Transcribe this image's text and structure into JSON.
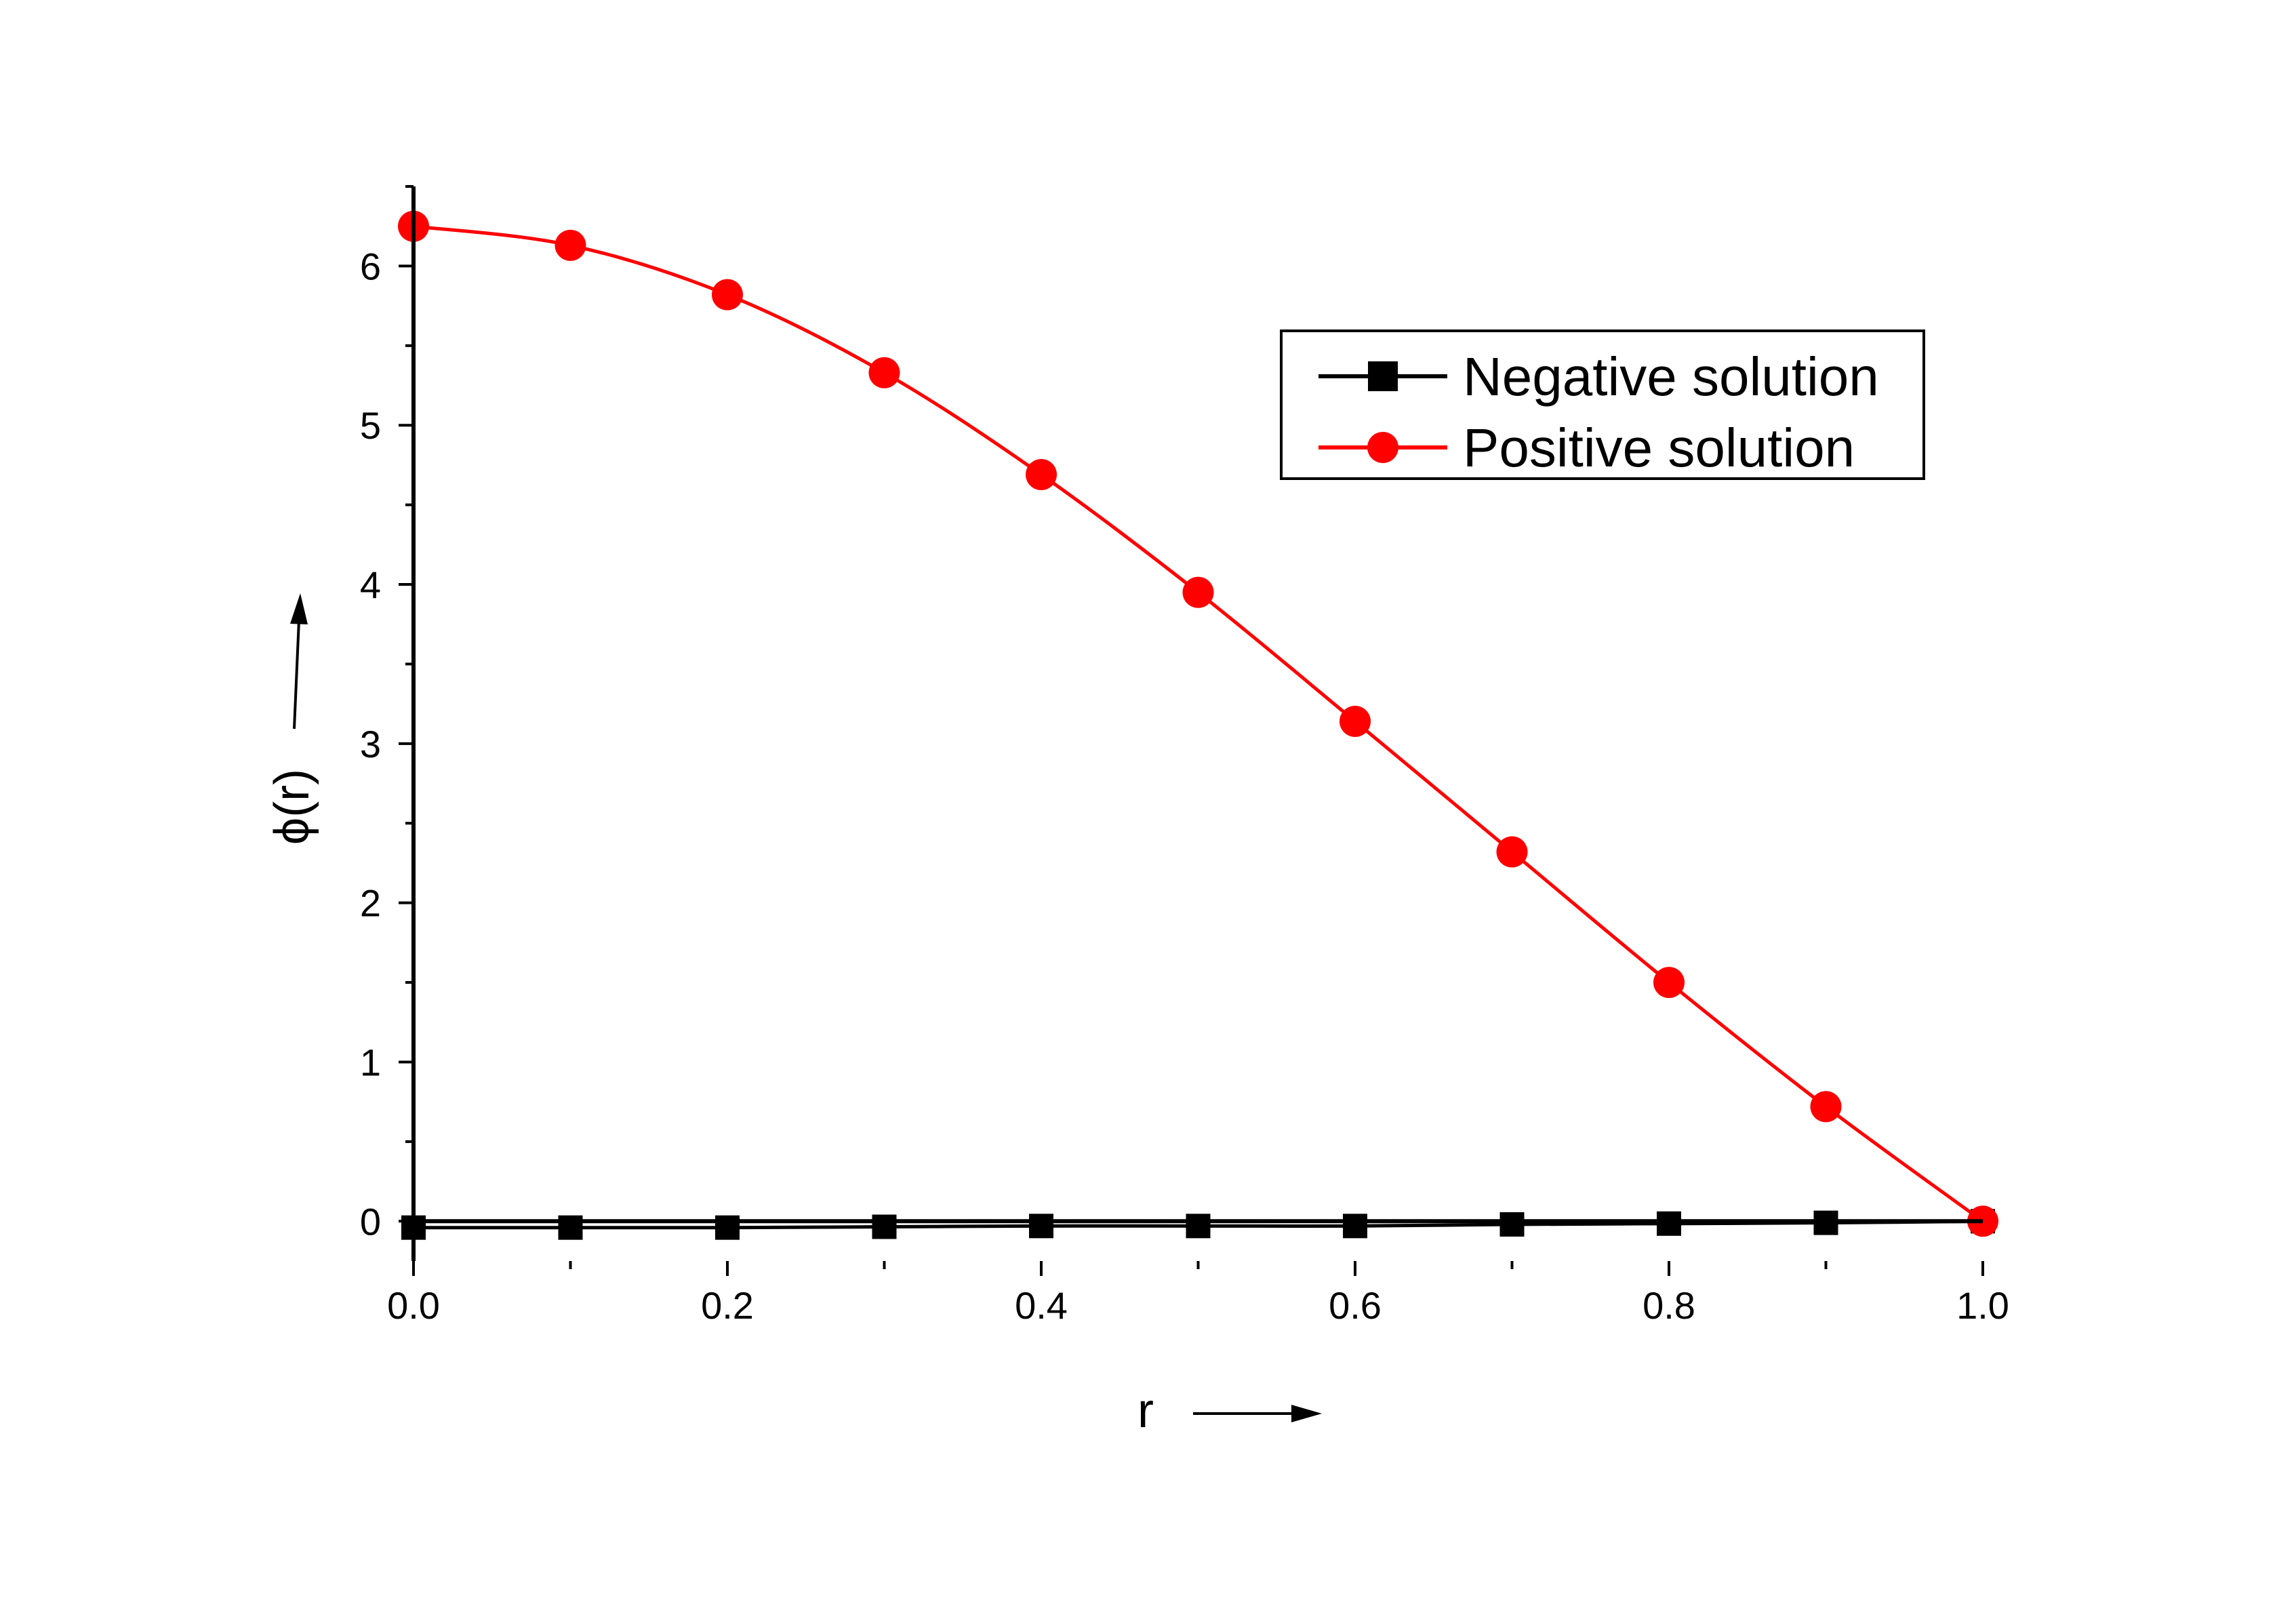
{
  "chart_data": {
    "type": "line",
    "title": "",
    "xlabel": "r",
    "ylabel": "ϕ(r)",
    "xlim": [
      0.0,
      1.0
    ],
    "ylim": [
      -0.25,
      6.5
    ],
    "x_ticks": [
      "0.0",
      "0.2",
      "0.4",
      "0.6",
      "0.8",
      "1.0"
    ],
    "y_ticks": [
      "0",
      "1",
      "2",
      "3",
      "4",
      "5",
      "6"
    ],
    "grid": false,
    "legend_position": "top-right",
    "series": [
      {
        "name": "Negative solution",
        "color": "#000000",
        "marker": "square",
        "x": [
          0.0,
          0.1,
          0.2,
          0.3,
          0.4,
          0.5,
          0.6,
          0.7,
          0.8,
          0.9,
          1.0
        ],
        "y": [
          -0.04,
          -0.04,
          -0.04,
          -0.035,
          -0.03,
          -0.03,
          -0.03,
          -0.02,
          -0.015,
          -0.01,
          0.0
        ]
      },
      {
        "name": "Positive solution",
        "color": "#ff0000",
        "marker": "circle",
        "x": [
          0.0,
          0.1,
          0.2,
          0.3,
          0.4,
          0.5,
          0.6,
          0.7,
          0.8,
          0.9,
          1.0
        ],
        "y": [
          6.25,
          6.13,
          5.82,
          5.33,
          4.69,
          3.95,
          3.14,
          2.32,
          1.5,
          0.72,
          0.0
        ]
      }
    ]
  }
}
